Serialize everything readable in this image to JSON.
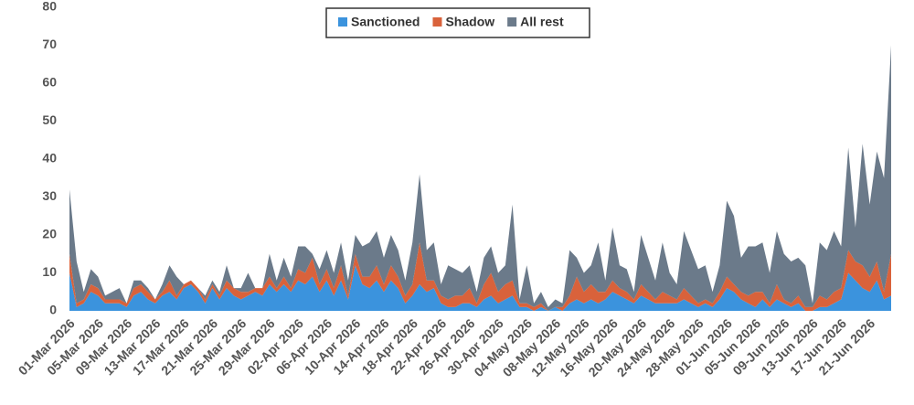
{
  "chart_data": {
    "type": "stacked_area",
    "categories": [
      "01-Mar 2026",
      null,
      null,
      null,
      "05-Mar 2026",
      null,
      null,
      null,
      "09-Mar 2026",
      null,
      null,
      null,
      "13-Mar 2026",
      null,
      null,
      null,
      "17-Mar 2026",
      null,
      null,
      null,
      "21-Mar 2026",
      null,
      null,
      null,
      "25-Mar 2026",
      null,
      null,
      null,
      "29-Mar 2026",
      null,
      null,
      null,
      "02-Apr 2026",
      null,
      null,
      null,
      "06-Apr 2026",
      null,
      null,
      null,
      "10-Apr 2026",
      null,
      null,
      null,
      "14-Apr 2026",
      null,
      null,
      null,
      "18-Apr 2026",
      null,
      null,
      null,
      "22-Apr 2026",
      null,
      null,
      null,
      "26-Apr 2026",
      null,
      null,
      null,
      "30-Apr 2026",
      null,
      null,
      null,
      "04-May 2026",
      null,
      null,
      null,
      "08-May 2026",
      null,
      null,
      null,
      "12-May 2026",
      null,
      null,
      null,
      "16-May 2026",
      null,
      null,
      null,
      "20-May 2026",
      null,
      null,
      null,
      "24-May 2026",
      null,
      null,
      null,
      "28-May 2026",
      null,
      null,
      null,
      "01-Jun 2026",
      null,
      null,
      null,
      "05-Jun 2026",
      null,
      null,
      null,
      "09-Jun 2026",
      null,
      null,
      null,
      "13-Jun 2026",
      null,
      null,
      null,
      "17-Jun 2026",
      null,
      null,
      null,
      "21-Jun 2026",
      null,
      null,
      null
    ],
    "series": [
      {
        "name": "Sanctioned",
        "color": "#3b93dd",
        "values": [
          10,
          1,
          2,
          5,
          4,
          2,
          2,
          2,
          1,
          4,
          5,
          3,
          2,
          4,
          5,
          3,
          6,
          7,
          5,
          2,
          6,
          3,
          6,
          4,
          3,
          4,
          5,
          4,
          7,
          5,
          7,
          5,
          8,
          7,
          9,
          5,
          8,
          4,
          8,
          3,
          12,
          7,
          6,
          8,
          5,
          8,
          6,
          2,
          4,
          7,
          5,
          6,
          2,
          1,
          1,
          2,
          2,
          1,
          3,
          4,
          2,
          3,
          4,
          1,
          1,
          0,
          1,
          0,
          1,
          0,
          2,
          3,
          2,
          3,
          2,
          3,
          5,
          4,
          3,
          2,
          4,
          3,
          2,
          2,
          2,
          2,
          3,
          2,
          1,
          2,
          1,
          3,
          6,
          5,
          3,
          2,
          1,
          3,
          1,
          3,
          2,
          1,
          2,
          0,
          0,
          1,
          1,
          2,
          3,
          10,
          8,
          6,
          5,
          8,
          3,
          4
        ]
      },
      {
        "name": "Shadow",
        "color": "#d9623b",
        "values": [
          5,
          1,
          1,
          2,
          2,
          1,
          1,
          1,
          1,
          2,
          2,
          2,
          1,
          1,
          3,
          1,
          1,
          1,
          1,
          1,
          1,
          1,
          2,
          2,
          2,
          1,
          1,
          2,
          2,
          1,
          2,
          1,
          3,
          3,
          5,
          2,
          3,
          2,
          4,
          1,
          3,
          2,
          3,
          4,
          2,
          4,
          3,
          2,
          3,
          11,
          3,
          2,
          2,
          2,
          3,
          2,
          4,
          1,
          4,
          6,
          3,
          4,
          4,
          1,
          1,
          1,
          1,
          0,
          0,
          1,
          2,
          6,
          3,
          4,
          3,
          2,
          3,
          2,
          2,
          1,
          3,
          2,
          1,
          3,
          2,
          1,
          3,
          2,
          1,
          1,
          1,
          2,
          3,
          2,
          2,
          2,
          4,
          2,
          1,
          4,
          1,
          1,
          2,
          1,
          1,
          3,
          2,
          3,
          3,
          6,
          5,
          6,
          4,
          5,
          2,
          11
        ]
      },
      {
        "name": "All rest",
        "color": "#6b7a8a",
        "values": [
          17,
          11,
          2,
          4,
          3,
          1,
          2,
          3,
          0,
          2,
          1,
          1,
          0,
          2,
          4,
          5,
          0,
          0,
          0,
          1,
          1,
          1,
          4,
          0,
          1,
          5,
          0,
          0,
          6,
          2,
          5,
          3,
          6,
          7,
          1,
          4,
          5,
          4,
          6,
          4,
          5,
          8,
          9,
          9,
          7,
          8,
          7,
          4,
          11,
          18,
          8,
          10,
          3,
          9,
          7,
          6,
          6,
          3,
          7,
          7,
          5,
          5,
          20,
          1,
          10,
          1,
          3,
          1,
          2,
          1,
          12,
          5,
          5,
          5,
          13,
          3,
          14,
          6,
          6,
          2,
          13,
          9,
          5,
          13,
          6,
          4,
          15,
          12,
          9,
          9,
          3,
          7,
          20,
          18,
          9,
          13,
          12,
          13,
          8,
          14,
          12,
          11,
          10,
          11,
          1,
          14,
          13,
          16,
          11,
          27,
          9,
          32,
          19,
          29,
          30,
          55
        ]
      }
    ],
    "ylim": [
      0,
      80
    ],
    "yticks": [
      0,
      10,
      20,
      30,
      40,
      50,
      60,
      70,
      80
    ],
    "legend": "top"
  }
}
